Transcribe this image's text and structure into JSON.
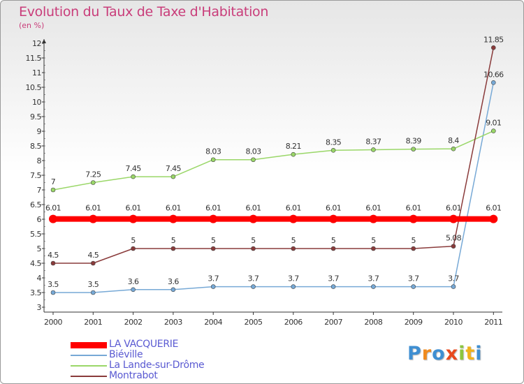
{
  "chart_data": {
    "type": "line",
    "title": "Evolution du Taux de Taxe d'Habitation",
    "subtitle": "(en %)",
    "xlabel": "",
    "ylabel": "(en %)",
    "ylim": [
      3,
      12
    ],
    "ytick_step": 0.5,
    "grid": false,
    "legend_position": "bottom-left",
    "categories": [
      "2000",
      "2001",
      "2002",
      "2003",
      "2004",
      "2005",
      "2006",
      "2007",
      "2008",
      "2009",
      "2010",
      "2011"
    ],
    "series": [
      {
        "name": "LA VACQUERIE",
        "color": "#ff0000",
        "values": [
          6.01,
          6.01,
          6.01,
          6.01,
          6.01,
          6.01,
          6.01,
          6.01,
          6.01,
          6.01,
          6.01,
          6.01
        ],
        "labels": [
          "6.01",
          "6.01",
          "6.01",
          "6.01",
          "6.01",
          "6.01",
          "6.01",
          "6.01",
          "6.01",
          "6.01",
          "6.01",
          "6.01"
        ]
      },
      {
        "name": "Biéville",
        "color": "#77a9d6",
        "values": [
          3.5,
          3.5,
          3.6,
          3.6,
          3.7,
          3.7,
          3.7,
          3.7,
          3.7,
          3.7,
          3.7,
          10.66
        ],
        "labels": [
          "3.5",
          "3.5",
          "3.6",
          "3.6",
          "3.7",
          "3.7",
          "3.7",
          "3.7",
          "3.7",
          "3.7",
          "3.7",
          "10.66"
        ]
      },
      {
        "name": "La Lande-sur-Drôme",
        "color": "#9ad768",
        "values": [
          7,
          7.25,
          7.45,
          7.45,
          8.03,
          8.03,
          8.21,
          8.35,
          8.37,
          8.39,
          8.4,
          9.01
        ],
        "labels": [
          "7",
          "7.25",
          "7.45",
          "7.45",
          "8.03",
          "8.03",
          "8.21",
          "8.35",
          "8.37",
          "8.39",
          "8.4",
          "9.01"
        ]
      },
      {
        "name": "Montrabot",
        "color": "#8a3b3b",
        "values": [
          4.5,
          4.5,
          5,
          5,
          5,
          5,
          5,
          5,
          5,
          5,
          5.08,
          11.85
        ],
        "labels": [
          "4.5",
          "4.5",
          "5",
          "5",
          "5",
          "5",
          "5",
          "5",
          "5",
          "5",
          "5.08",
          "11.85"
        ]
      }
    ]
  },
  "logo": {
    "letters": [
      "P",
      "r",
      "o",
      "x",
      "i",
      "t",
      "i"
    ],
    "colors": [
      "#3f8fd2",
      "#f08a1d",
      "#3f8fd2",
      "#e8491d",
      "#8cc63f",
      "#f0b21d",
      "#3f8fd2"
    ]
  }
}
